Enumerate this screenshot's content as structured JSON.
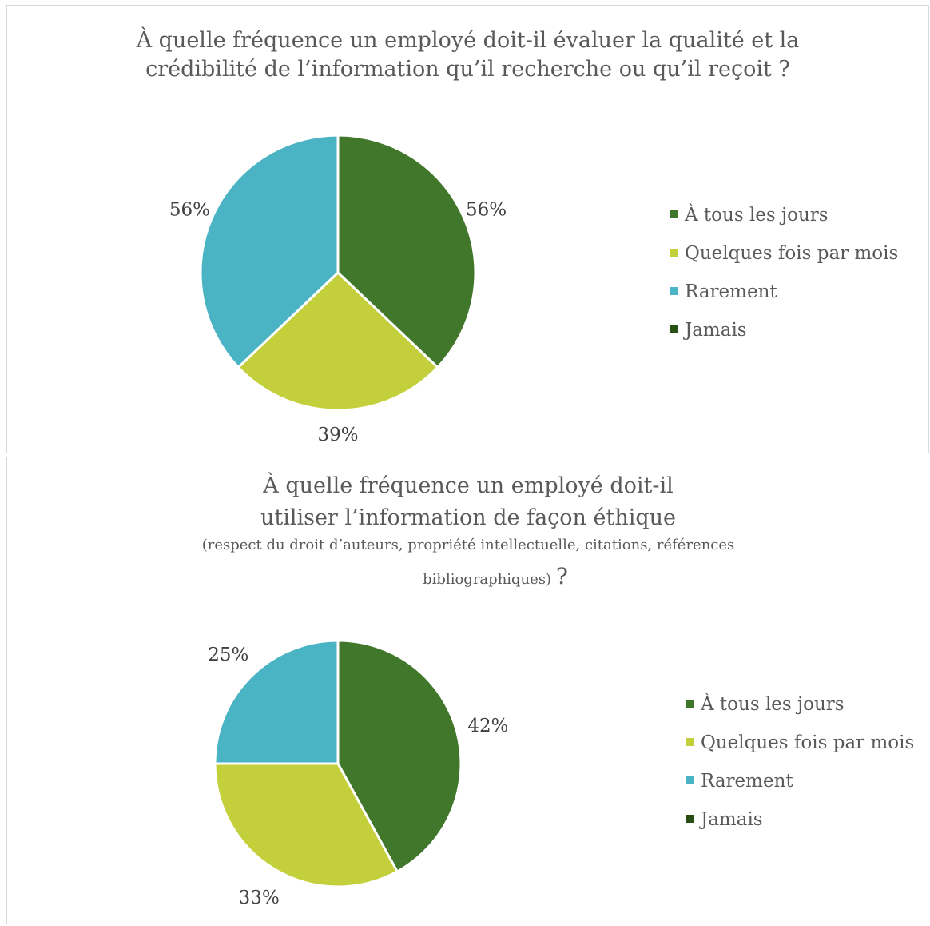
{
  "chart_data": [
    {
      "type": "pie",
      "title_lines": [
        "À quelle fréquence un employé doit-il évaluer la qualité et la",
        "crédibilité de l’information qu’il recherche ou qu’il reçoit ?"
      ],
      "categories": [
        "À tous les jours",
        "Quelques fois par mois",
        "Rarement",
        "Jamais"
      ],
      "values": [
        56,
        39,
        56,
        0
      ],
      "data_labels": [
        "56%",
        "39%",
        "56%",
        ""
      ],
      "colors": [
        "#41772a",
        "#c3d03c",
        "#4bb4c4",
        "#274e13"
      ],
      "legend_position": "right"
    },
    {
      "type": "pie",
      "title_lines": [
        "À quelle fréquence un employé doit-il",
        "utiliser l’information de façon éthique"
      ],
      "subtitle_lines": [
        "(respect du droit d’auteurs, propriété intellectuelle, citations, références",
        "bibliographiques)"
      ],
      "subtitle_suffix": "?",
      "categories": [
        "À tous les jours",
        "Quelques fois par mois",
        "Rarement",
        "Jamais"
      ],
      "values": [
        42,
        33,
        25,
        0
      ],
      "data_labels": [
        "42%",
        "33%",
        "25%",
        ""
      ],
      "colors": [
        "#41772a",
        "#c3d03c",
        "#4bb4c4",
        "#274e13"
      ],
      "legend_position": "right"
    }
  ]
}
